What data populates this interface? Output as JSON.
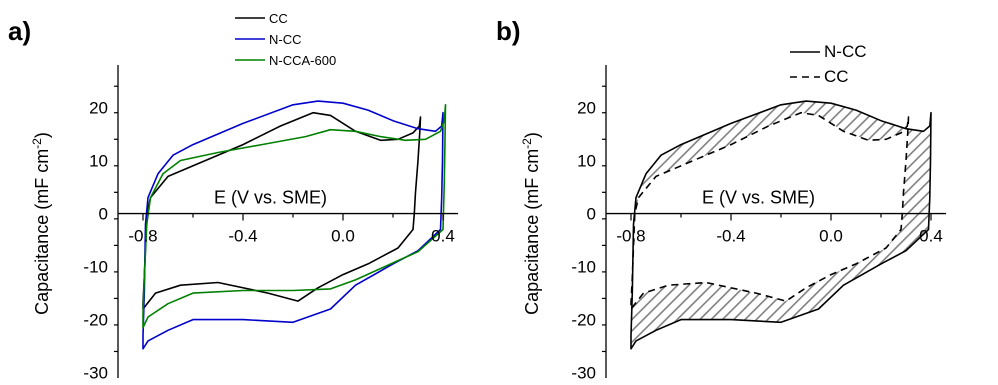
{
  "chart_data": [
    {
      "type": "line",
      "panel_label": "a)",
      "title": "",
      "xlabel": "E (V vs. SME)",
      "ylabel": "Capacitance (mF cm",
      "ylabel_sup": "-2",
      "ylabel_close": ")",
      "xlim": [
        -0.9,
        0.46
      ],
      "ylim": [
        -31,
        28
      ],
      "x_ticks": [
        -0.8,
        -0.4,
        0.0,
        0.4
      ],
      "x_tick_labels": [
        "-0.8",
        "-0.4",
        "0.0",
        "0.4"
      ],
      "y_ticks": [
        -30,
        -20,
        -10,
        0,
        10,
        20
      ],
      "y_tick_labels": [
        "-30",
        "-20",
        "-10",
        "0",
        "10",
        "20"
      ],
      "legend_position": "top-center",
      "series": [
        {
          "name": "CC",
          "color": "#000000",
          "dash": "",
          "points": [
            [
              0.31,
              18.2
            ],
            [
              0.308,
              16
            ],
            [
              0.3,
              10
            ],
            [
              0.29,
              4
            ],
            [
              0.285,
              0
            ],
            [
              0.28,
              -3
            ],
            [
              0.22,
              -6.5
            ],
            [
              0.1,
              -9.5
            ],
            [
              0.0,
              -11.5
            ],
            [
              -0.1,
              -14
            ],
            [
              -0.18,
              -16.5
            ],
            [
              -0.3,
              -15
            ],
            [
              -0.5,
              -13
            ],
            [
              -0.65,
              -13.5
            ],
            [
              -0.75,
              -15
            ],
            [
              -0.8,
              -18
            ],
            [
              -0.8,
              -17
            ],
            [
              -0.795,
              -12
            ],
            [
              -0.785,
              0
            ],
            [
              -0.77,
              3
            ],
            [
              -0.7,
              7
            ],
            [
              -0.55,
              10
            ],
            [
              -0.4,
              13
            ],
            [
              -0.25,
              16.5
            ],
            [
              -0.12,
              19
            ],
            [
              -0.05,
              18.5
            ],
            [
              0.05,
              15.5
            ],
            [
              0.15,
              13.8
            ],
            [
              0.22,
              14
            ],
            [
              0.28,
              15.2
            ],
            [
              0.305,
              16.5
            ],
            [
              0.31,
              18.2
            ]
          ]
        },
        {
          "name": "N-CC",
          "color": "#0000cc",
          "dash": "",
          "points": [
            [
              0.4,
              19
            ],
            [
              0.398,
              10
            ],
            [
              0.395,
              3
            ],
            [
              0.39,
              -3
            ],
            [
              0.3,
              -7
            ],
            [
              0.2,
              -9.5
            ],
            [
              0.05,
              -13.5
            ],
            [
              -0.05,
              -18
            ],
            [
              -0.2,
              -20.5
            ],
            [
              -0.4,
              -20
            ],
            [
              -0.6,
              -20
            ],
            [
              -0.7,
              -22
            ],
            [
              -0.78,
              -24
            ],
            [
              -0.8,
              -25.5
            ],
            [
              -0.8,
              -23
            ],
            [
              -0.795,
              -15
            ],
            [
              -0.79,
              -2
            ],
            [
              -0.78,
              3
            ],
            [
              -0.74,
              7.5
            ],
            [
              -0.68,
              11
            ],
            [
              -0.6,
              13
            ],
            [
              -0.4,
              17
            ],
            [
              -0.2,
              20.5
            ],
            [
              -0.1,
              21.2
            ],
            [
              0.0,
              20.8
            ],
            [
              0.1,
              19.5
            ],
            [
              0.2,
              17.5
            ],
            [
              0.3,
              16
            ],
            [
              0.37,
              15.5
            ],
            [
              0.395,
              16.5
            ],
            [
              0.4,
              19
            ]
          ]
        },
        {
          "name": "N-CCA-600",
          "color": "#008000",
          "dash": "",
          "points": [
            [
              0.41,
              20.5
            ],
            [
              0.408,
              14
            ],
            [
              0.405,
              6
            ],
            [
              0.4,
              -3
            ],
            [
              0.3,
              -7.2
            ],
            [
              0.2,
              -9.3
            ],
            [
              0.05,
              -12.5
            ],
            [
              -0.05,
              -14.2
            ],
            [
              -0.2,
              -14.5
            ],
            [
              -0.4,
              -14.5
            ],
            [
              -0.6,
              -15
            ],
            [
              -0.7,
              -17
            ],
            [
              -0.78,
              -19.5
            ],
            [
              -0.8,
              -21.5
            ],
            [
              -0.8,
              -19
            ],
            [
              -0.795,
              -12
            ],
            [
              -0.785,
              -2
            ],
            [
              -0.77,
              3
            ],
            [
              -0.72,
              7.5
            ],
            [
              -0.65,
              10
            ],
            [
              -0.5,
              11.5
            ],
            [
              -0.3,
              13.2
            ],
            [
              -0.15,
              14.5
            ],
            [
              -0.05,
              15.8
            ],
            [
              0.05,
              15.5
            ],
            [
              0.15,
              14.5
            ],
            [
              0.25,
              13.8
            ],
            [
              0.33,
              14
            ],
            [
              0.39,
              15.5
            ],
            [
              0.405,
              17.5
            ],
            [
              0.41,
              20.5
            ]
          ]
        }
      ]
    },
    {
      "type": "line",
      "panel_label": "b)",
      "title": "",
      "xlabel": "E (V vs. SME)",
      "ylabel": "Capacitance (mF cm",
      "ylabel_sup": "-2",
      "ylabel_close": ")",
      "xlim": [
        -0.9,
        0.46
      ],
      "ylim": [
        -31,
        28
      ],
      "x_ticks": [
        -0.8,
        -0.4,
        0.0,
        0.4
      ],
      "x_tick_labels": [
        "-0.8",
        "-0.4",
        "0.0",
        "0.4"
      ],
      "y_ticks": [
        -30,
        -20,
        -10,
        0,
        10,
        20
      ],
      "y_tick_labels": [
        "-30",
        "-20",
        "-10",
        "0",
        "10",
        "20"
      ],
      "legend_position": "top-center",
      "hatch_between": [
        "N-CC",
        "CC"
      ],
      "series": [
        {
          "name": "N-CC",
          "color": "#000000",
          "dash": "",
          "points": [
            [
              0.4,
              19
            ],
            [
              0.398,
              10
            ],
            [
              0.395,
              3
            ],
            [
              0.39,
              -3
            ],
            [
              0.3,
              -7
            ],
            [
              0.2,
              -9.5
            ],
            [
              0.05,
              -13.5
            ],
            [
              -0.05,
              -18
            ],
            [
              -0.2,
              -20.5
            ],
            [
              -0.4,
              -20
            ],
            [
              -0.6,
              -20
            ],
            [
              -0.7,
              -22
            ],
            [
              -0.78,
              -24
            ],
            [
              -0.8,
              -25.5
            ],
            [
              -0.8,
              -23
            ],
            [
              -0.795,
              -15
            ],
            [
              -0.79,
              -2
            ],
            [
              -0.78,
              3
            ],
            [
              -0.74,
              7.5
            ],
            [
              -0.68,
              11
            ],
            [
              -0.6,
              13
            ],
            [
              -0.4,
              17
            ],
            [
              -0.2,
              20.5
            ],
            [
              -0.1,
              21.2
            ],
            [
              0.0,
              20.8
            ],
            [
              0.1,
              19.5
            ],
            [
              0.2,
              17.5
            ],
            [
              0.3,
              16
            ],
            [
              0.37,
              15.5
            ],
            [
              0.395,
              16.5
            ],
            [
              0.4,
              19
            ]
          ]
        },
        {
          "name": "CC",
          "color": "#000000",
          "dash": "7,5",
          "points": [
            [
              0.31,
              18.2
            ],
            [
              0.308,
              16
            ],
            [
              0.3,
              10
            ],
            [
              0.29,
              4
            ],
            [
              0.285,
              0
            ],
            [
              0.28,
              -3
            ],
            [
              0.22,
              -6.5
            ],
            [
              0.1,
              -9.5
            ],
            [
              0.0,
              -11.5
            ],
            [
              -0.1,
              -14
            ],
            [
              -0.18,
              -16.5
            ],
            [
              -0.3,
              -15
            ],
            [
              -0.5,
              -13
            ],
            [
              -0.65,
              -13.5
            ],
            [
              -0.75,
              -15
            ],
            [
              -0.8,
              -18
            ],
            [
              -0.8,
              -17
            ],
            [
              -0.795,
              -12
            ],
            [
              -0.785,
              0
            ],
            [
              -0.77,
              3
            ],
            [
              -0.7,
              7
            ],
            [
              -0.55,
              10
            ],
            [
              -0.4,
              13
            ],
            [
              -0.25,
              16.5
            ],
            [
              -0.12,
              19
            ],
            [
              -0.05,
              18.5
            ],
            [
              0.05,
              15.5
            ],
            [
              0.15,
              13.8
            ],
            [
              0.22,
              14
            ],
            [
              0.28,
              15.2
            ],
            [
              0.305,
              16.5
            ],
            [
              0.31,
              18.2
            ]
          ]
        }
      ]
    }
  ]
}
